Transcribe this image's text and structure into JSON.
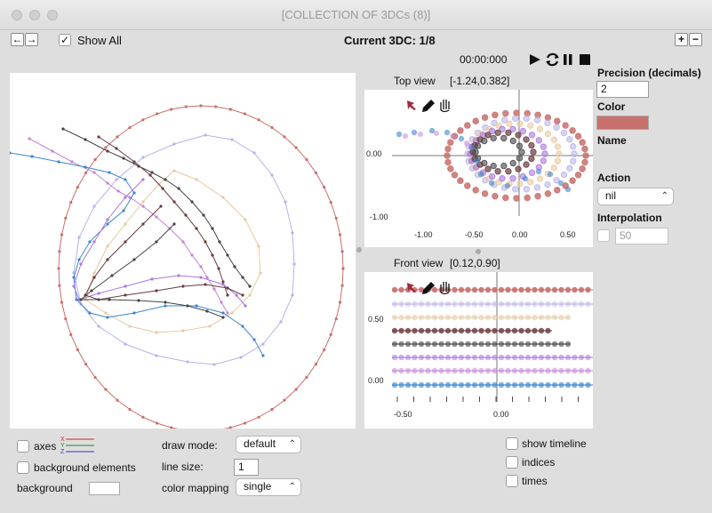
{
  "window": {
    "title": "[COLLECTION OF 3DCs (8)]"
  },
  "toolbar": {
    "prev_icon": "←",
    "next_icon": "→",
    "show_all_label": "Show All",
    "show_all_checked": true,
    "current_label": "Current 3DC: 1/8",
    "add_icon": "+",
    "remove_icon": "−"
  },
  "player": {
    "time": "00:00:000",
    "play_icon": "play-icon",
    "loop_icon": "loop-icon",
    "pause_icon": "pause-icon",
    "stop_icon": "stop-icon"
  },
  "top_view": {
    "title": "Top view",
    "range": "[-1.24,0.382]",
    "x_ticks": [
      "-1.00",
      "-0.50",
      "0.00",
      "0.50"
    ],
    "y_ticks": [
      "0.00",
      "-1.00"
    ]
  },
  "front_view": {
    "title": "Front view",
    "range": "[0.12,0.90]",
    "x_ticks": [
      "-0.50",
      "0.00"
    ],
    "y_ticks": [
      "0.50",
      "0.00"
    ]
  },
  "side_panel": {
    "precision_label": "Precision (decimals)",
    "precision_value": "2",
    "color_label": "Color",
    "color_value": "#c8706c",
    "name_label": "Name",
    "action_label": "Action",
    "action_value": "nil",
    "interpolation_label": "Interpolation",
    "interpolation_value": "50"
  },
  "bottom": {
    "axes_label": "axes",
    "axis_x": "X",
    "axis_y": "Y",
    "axis_z": "Z",
    "background_elements_label": "background elements",
    "background_label": "background",
    "draw_mode_label": "draw mode:",
    "draw_mode_value": "default",
    "line_size_label": "line size:",
    "line_size_value": "1",
    "color_mapping_label": "color mapping",
    "color_mapping_value": "single",
    "show_timeline_label": "show timeline",
    "indices_label": "indices",
    "times_label": "times"
  },
  "colors": {
    "red": "#c8706c",
    "lavender": "#b7b2ea",
    "tan": "#e8c9a0",
    "maroon": "#6a3a40",
    "dark": "#444444",
    "purple": "#a979de",
    "violet": "#c384d8",
    "blue": "#3f86cc"
  }
}
